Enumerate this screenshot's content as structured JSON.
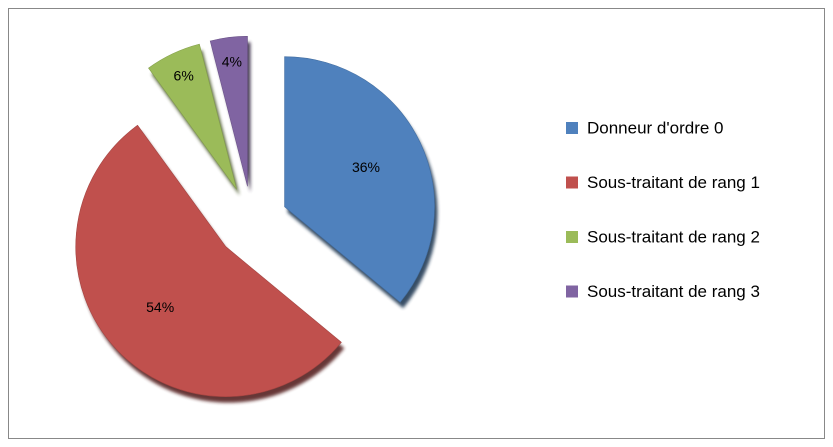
{
  "chart_data": {
    "type": "pie",
    "categories": [
      "Donneur d'ordre 0",
      "Sous-traitant de rang 1",
      "Sous-traitant de rang 2",
      "Sous-traitant de rang 3"
    ],
    "values": [
      36,
      54,
      6,
      4
    ],
    "value_labels": [
      "36%",
      "54%",
      "6%",
      "4%"
    ],
    "colors": [
      "#4f81bd",
      "#c0504d",
      "#9bbb59",
      "#8064a2"
    ],
    "legend": "right"
  }
}
